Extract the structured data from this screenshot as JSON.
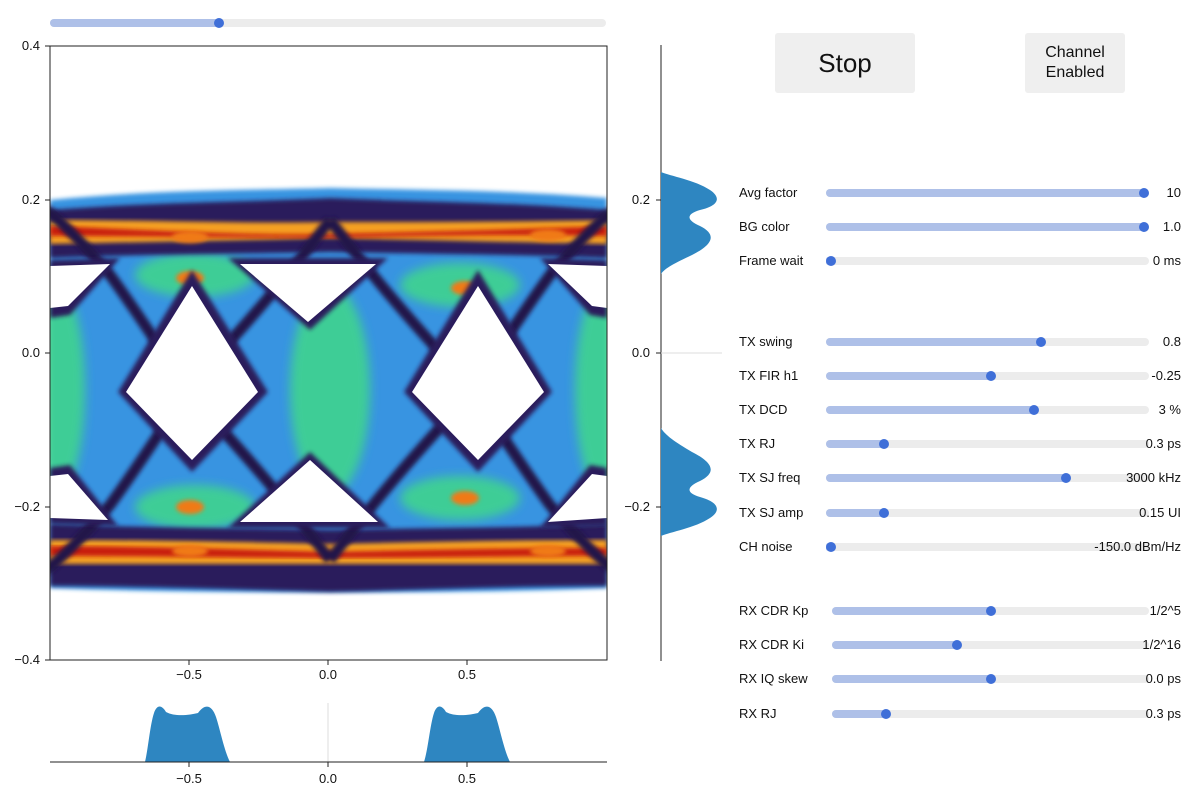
{
  "top_slider": {
    "value": 0.3
  },
  "eye_plot": {
    "y_ticks": [
      "0.4",
      "0.2",
      "0.0",
      "−0.2",
      "−0.4"
    ],
    "x_ticks": [
      "−0.5",
      "0.0",
      "0.5"
    ]
  },
  "side_hist": {
    "y_ticks": [
      "0.2",
      "0.0",
      "−0.2"
    ]
  },
  "bottom_hist": {
    "x_ticks": [
      "−0.5",
      "0.0",
      "0.5"
    ]
  },
  "buttons": {
    "stop_label": "Stop",
    "channel_label": "Channel Enabled"
  },
  "sliders": [
    {
      "label": "Avg factor",
      "value": "10",
      "fraction": 1.0
    },
    {
      "label": "BG color",
      "value": "1.0",
      "fraction": 1.0
    },
    {
      "label": "Frame wait",
      "value": "0 ms",
      "fraction": 0.0
    },
    {
      "label": "TX swing",
      "value": "0.8",
      "fraction": 0.67
    },
    {
      "label": "TX FIR h1",
      "value": "-0.25",
      "fraction": 0.51
    },
    {
      "label": "TX DCD",
      "value": "3 %",
      "fraction": 0.65
    },
    {
      "label": "TX RJ",
      "value": "0.3 ps",
      "fraction": 0.17
    },
    {
      "label": "TX SJ freq",
      "value": "3000 kHz",
      "fraction": 0.75
    },
    {
      "label": "TX SJ amp",
      "value": "0.15 UI",
      "fraction": 0.17
    },
    {
      "label": "CH noise",
      "value": "-150.0 dBm/Hz",
      "fraction": 0.0
    },
    {
      "label": "RX CDR Kp",
      "value": "1/2^5",
      "fraction": 0.5
    },
    {
      "label": "RX CDR Ki",
      "value": "1/2^16",
      "fraction": 0.39
    },
    {
      "label": "RX IQ skew",
      "value": "0.0 ps",
      "fraction": 0.5
    },
    {
      "label": "RX RJ",
      "value": "0.3 ps",
      "fraction": 0.16
    }
  ],
  "colors": {
    "accent": "#3f6fd8",
    "track_fill": "#aec0e8",
    "track": "#ececec",
    "hist": "#2e86c1"
  }
}
